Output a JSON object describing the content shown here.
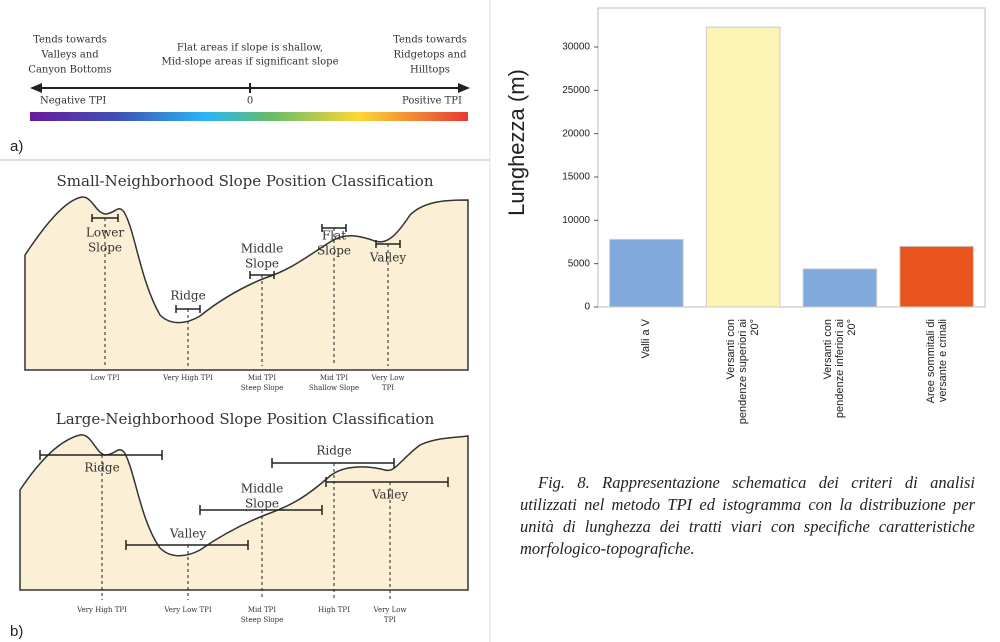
{
  "diagram": {
    "panel_a": {
      "left_note": [
        "Tends towards",
        "Valleys and",
        "Canyon Bottoms"
      ],
      "center_note": [
        "Flat areas if slope is shallow,",
        "Mid-slope areas if significant slope"
      ],
      "right_note": [
        "Tends towards",
        "Ridgetops and",
        "Hilltops"
      ],
      "negative": "Negative TPI",
      "zero": "0",
      "positive": "Positive TPI",
      "label": "a)"
    },
    "panel_b": {
      "small": {
        "title": "Small-Neighborhood Slope Position Classification",
        "classes": [
          [
            "Lower",
            "Slope"
          ],
          [
            "Ridge"
          ],
          [
            "Middle",
            "Slope"
          ],
          [
            "Flat",
            "Slope"
          ],
          [
            "Valley"
          ]
        ],
        "tpi": [
          [
            "Low TPI"
          ],
          [
            "Very High TPI"
          ],
          [
            "Mid TPI",
            "Steep Slope"
          ],
          [
            "Mid TPI",
            "Shallow Slope"
          ],
          [
            "Very Low",
            "TPI"
          ]
        ]
      },
      "large": {
        "title": "Large-Neighborhood Slope Position Classification",
        "classes": [
          [
            "Ridge"
          ],
          [
            "Valley"
          ],
          [
            "Middle",
            "Slope"
          ],
          [
            "Ridge"
          ],
          [
            "Valley"
          ]
        ],
        "tpi": [
          [
            "Very High TPI"
          ],
          [
            "Very Low TPI"
          ],
          [
            "Mid TPI",
            "Steep Slope"
          ],
          [
            "High TPI"
          ],
          [
            "Very Low",
            "TPI"
          ]
        ]
      },
      "label": "b)"
    }
  },
  "chart_data": {
    "type": "bar",
    "ylabel": "Lunghezza  (m)",
    "categories": [
      "Valli a V",
      "Versanti con pendenze superiori ai 20°",
      "Versanti con pendenze inferiori ai 20°",
      "Aree sommitali di versante e crinali"
    ],
    "values": [
      7800,
      32300,
      4400,
      7000
    ],
    "colors": [
      "#80a9dc",
      "#fcf4b4",
      "#80a9dc",
      "#e8541c"
    ],
    "ylim": [
      0,
      34500
    ],
    "yticks": [
      0,
      5000,
      10000,
      15000,
      20000,
      25000,
      30000
    ]
  },
  "caption": "Fig. 8. Rappresentazione schematica dei criteri di analisi utilizzati nel metodo TPI ed istogramma con la distribuzione per unità di lunghezza dei tratti viari con specifiche caratteristiche morfologico-topografiche."
}
